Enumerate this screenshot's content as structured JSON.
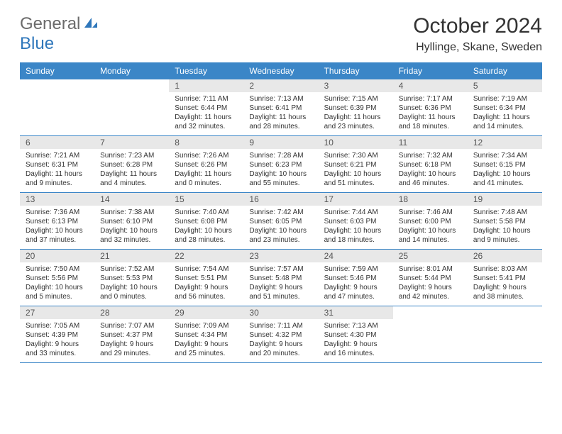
{
  "logo": {
    "part1": "General",
    "part2": "Blue"
  },
  "title": "October 2024",
  "location": "Hyllinge, Skane, Sweden",
  "colors": {
    "header_bg": "#3b86c7",
    "header_text": "#ffffff",
    "daynum_bg": "#e8e8e8",
    "daynum_text": "#555555",
    "body_text": "#333333",
    "logo_gray": "#6b6b6b",
    "logo_blue": "#2f77bb",
    "border": "#3b86c7"
  },
  "day_headers": [
    "Sunday",
    "Monday",
    "Tuesday",
    "Wednesday",
    "Thursday",
    "Friday",
    "Saturday"
  ],
  "weeks": [
    [
      null,
      null,
      {
        "n": "1",
        "sr": "Sunrise: 7:11 AM",
        "ss": "Sunset: 6:44 PM",
        "d1": "Daylight: 11 hours",
        "d2": "and 32 minutes."
      },
      {
        "n": "2",
        "sr": "Sunrise: 7:13 AM",
        "ss": "Sunset: 6:41 PM",
        "d1": "Daylight: 11 hours",
        "d2": "and 28 minutes."
      },
      {
        "n": "3",
        "sr": "Sunrise: 7:15 AM",
        "ss": "Sunset: 6:39 PM",
        "d1": "Daylight: 11 hours",
        "d2": "and 23 minutes."
      },
      {
        "n": "4",
        "sr": "Sunrise: 7:17 AM",
        "ss": "Sunset: 6:36 PM",
        "d1": "Daylight: 11 hours",
        "d2": "and 18 minutes."
      },
      {
        "n": "5",
        "sr": "Sunrise: 7:19 AM",
        "ss": "Sunset: 6:34 PM",
        "d1": "Daylight: 11 hours",
        "d2": "and 14 minutes."
      }
    ],
    [
      {
        "n": "6",
        "sr": "Sunrise: 7:21 AM",
        "ss": "Sunset: 6:31 PM",
        "d1": "Daylight: 11 hours",
        "d2": "and 9 minutes."
      },
      {
        "n": "7",
        "sr": "Sunrise: 7:23 AM",
        "ss": "Sunset: 6:28 PM",
        "d1": "Daylight: 11 hours",
        "d2": "and 4 minutes."
      },
      {
        "n": "8",
        "sr": "Sunrise: 7:26 AM",
        "ss": "Sunset: 6:26 PM",
        "d1": "Daylight: 11 hours",
        "d2": "and 0 minutes."
      },
      {
        "n": "9",
        "sr": "Sunrise: 7:28 AM",
        "ss": "Sunset: 6:23 PM",
        "d1": "Daylight: 10 hours",
        "d2": "and 55 minutes."
      },
      {
        "n": "10",
        "sr": "Sunrise: 7:30 AM",
        "ss": "Sunset: 6:21 PM",
        "d1": "Daylight: 10 hours",
        "d2": "and 51 minutes."
      },
      {
        "n": "11",
        "sr": "Sunrise: 7:32 AM",
        "ss": "Sunset: 6:18 PM",
        "d1": "Daylight: 10 hours",
        "d2": "and 46 minutes."
      },
      {
        "n": "12",
        "sr": "Sunrise: 7:34 AM",
        "ss": "Sunset: 6:15 PM",
        "d1": "Daylight: 10 hours",
        "d2": "and 41 minutes."
      }
    ],
    [
      {
        "n": "13",
        "sr": "Sunrise: 7:36 AM",
        "ss": "Sunset: 6:13 PM",
        "d1": "Daylight: 10 hours",
        "d2": "and 37 minutes."
      },
      {
        "n": "14",
        "sr": "Sunrise: 7:38 AM",
        "ss": "Sunset: 6:10 PM",
        "d1": "Daylight: 10 hours",
        "d2": "and 32 minutes."
      },
      {
        "n": "15",
        "sr": "Sunrise: 7:40 AM",
        "ss": "Sunset: 6:08 PM",
        "d1": "Daylight: 10 hours",
        "d2": "and 28 minutes."
      },
      {
        "n": "16",
        "sr": "Sunrise: 7:42 AM",
        "ss": "Sunset: 6:05 PM",
        "d1": "Daylight: 10 hours",
        "d2": "and 23 minutes."
      },
      {
        "n": "17",
        "sr": "Sunrise: 7:44 AM",
        "ss": "Sunset: 6:03 PM",
        "d1": "Daylight: 10 hours",
        "d2": "and 18 minutes."
      },
      {
        "n": "18",
        "sr": "Sunrise: 7:46 AM",
        "ss": "Sunset: 6:00 PM",
        "d1": "Daylight: 10 hours",
        "d2": "and 14 minutes."
      },
      {
        "n": "19",
        "sr": "Sunrise: 7:48 AM",
        "ss": "Sunset: 5:58 PM",
        "d1": "Daylight: 10 hours",
        "d2": "and 9 minutes."
      }
    ],
    [
      {
        "n": "20",
        "sr": "Sunrise: 7:50 AM",
        "ss": "Sunset: 5:56 PM",
        "d1": "Daylight: 10 hours",
        "d2": "and 5 minutes."
      },
      {
        "n": "21",
        "sr": "Sunrise: 7:52 AM",
        "ss": "Sunset: 5:53 PM",
        "d1": "Daylight: 10 hours",
        "d2": "and 0 minutes."
      },
      {
        "n": "22",
        "sr": "Sunrise: 7:54 AM",
        "ss": "Sunset: 5:51 PM",
        "d1": "Daylight: 9 hours",
        "d2": "and 56 minutes."
      },
      {
        "n": "23",
        "sr": "Sunrise: 7:57 AM",
        "ss": "Sunset: 5:48 PM",
        "d1": "Daylight: 9 hours",
        "d2": "and 51 minutes."
      },
      {
        "n": "24",
        "sr": "Sunrise: 7:59 AM",
        "ss": "Sunset: 5:46 PM",
        "d1": "Daylight: 9 hours",
        "d2": "and 47 minutes."
      },
      {
        "n": "25",
        "sr": "Sunrise: 8:01 AM",
        "ss": "Sunset: 5:44 PM",
        "d1": "Daylight: 9 hours",
        "d2": "and 42 minutes."
      },
      {
        "n": "26",
        "sr": "Sunrise: 8:03 AM",
        "ss": "Sunset: 5:41 PM",
        "d1": "Daylight: 9 hours",
        "d2": "and 38 minutes."
      }
    ],
    [
      {
        "n": "27",
        "sr": "Sunrise: 7:05 AM",
        "ss": "Sunset: 4:39 PM",
        "d1": "Daylight: 9 hours",
        "d2": "and 33 minutes."
      },
      {
        "n": "28",
        "sr": "Sunrise: 7:07 AM",
        "ss": "Sunset: 4:37 PM",
        "d1": "Daylight: 9 hours",
        "d2": "and 29 minutes."
      },
      {
        "n": "29",
        "sr": "Sunrise: 7:09 AM",
        "ss": "Sunset: 4:34 PM",
        "d1": "Daylight: 9 hours",
        "d2": "and 25 minutes."
      },
      {
        "n": "30",
        "sr": "Sunrise: 7:11 AM",
        "ss": "Sunset: 4:32 PM",
        "d1": "Daylight: 9 hours",
        "d2": "and 20 minutes."
      },
      {
        "n": "31",
        "sr": "Sunrise: 7:13 AM",
        "ss": "Sunset: 4:30 PM",
        "d1": "Daylight: 9 hours",
        "d2": "and 16 minutes."
      },
      null,
      null
    ]
  ]
}
